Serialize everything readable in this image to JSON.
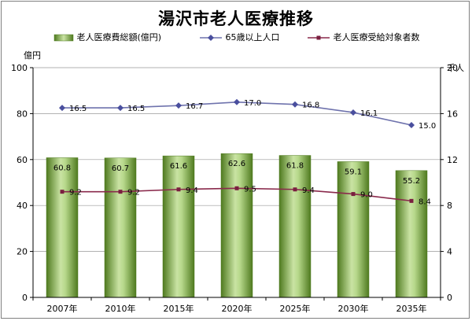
{
  "title": "湯沢市老人医療推移",
  "colors": {
    "bar_dark": "#4f7a1f",
    "bar_light": "#c9e3a3",
    "population_line": "#6f73ad",
    "population_marker": "#4a4f9e",
    "recipients_line": "#8a2a4c",
    "recipients_marker": "#7a1f3f",
    "grid": "#999999"
  },
  "chart_data": {
    "type": "bar",
    "title": "湯沢市老人医療推移",
    "categories": [
      "2007年",
      "2010年",
      "2015年",
      "2020年",
      "2025年",
      "2030年",
      "2035年"
    ],
    "left_axis": {
      "unit": "億円",
      "min": 0,
      "max": 100,
      "step": 20,
      "ticks": [
        "0",
        "20",
        "40",
        "60",
        "80",
        "100"
      ]
    },
    "right_axis": {
      "unit": "千人",
      "min": 0,
      "max": 20,
      "step": 4,
      "ticks": [
        "0",
        "4",
        "8",
        "12",
        "16",
        "20"
      ]
    },
    "grid": true,
    "legend_position": "top",
    "series": [
      {
        "name": "老人医療費総額(億円)",
        "type": "bar",
        "axis": "left",
        "values": [
          60.8,
          60.7,
          61.6,
          62.6,
          61.8,
          59.1,
          55.2
        ],
        "labels": [
          "60.8",
          "60.7",
          "61.6",
          "62.6",
          "61.8",
          "59.1",
          "55.2"
        ]
      },
      {
        "name": "65歳以上人口",
        "type": "line",
        "axis": "right",
        "marker": "diamond",
        "values": [
          16.5,
          16.5,
          16.7,
          17.0,
          16.8,
          16.1,
          15.0
        ],
        "labels": [
          "16.5",
          "16.5",
          "16.7",
          "17.0",
          "16.8",
          "16.1",
          "15.0"
        ]
      },
      {
        "name": "老人医療受給対象者数",
        "type": "line",
        "axis": "right",
        "marker": "square",
        "values": [
          9.2,
          9.2,
          9.4,
          9.5,
          9.4,
          9.0,
          8.4
        ],
        "labels": [
          "9.2",
          "9.2",
          "9.4",
          "9.5",
          "9.4",
          "9.0",
          "8.4"
        ]
      }
    ]
  }
}
